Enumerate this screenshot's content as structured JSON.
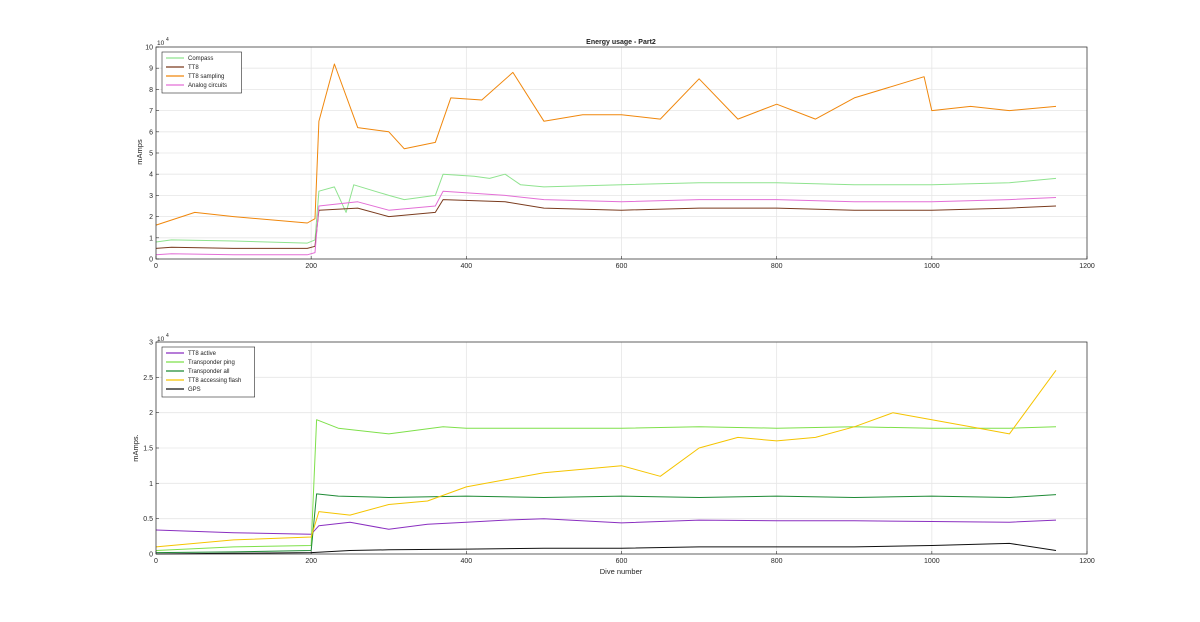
{
  "chart_data": [
    {
      "type": "line",
      "title": "Energy usage - Part2",
      "xlabel": "",
      "ylabel": "mAmps",
      "exponent_base": "10",
      "exponent_power": "4",
      "xlim": [
        0,
        1200
      ],
      "ylim": [
        0,
        10
      ],
      "xticks": [
        "0",
        "200",
        "400",
        "600",
        "800",
        "1000",
        "1200"
      ],
      "yticks": [
        "0",
        "1",
        "2",
        "3",
        "4",
        "5",
        "6",
        "7",
        "8",
        "9",
        "10"
      ],
      "grid": true,
      "legend_position": "top-left",
      "series": [
        {
          "name": "Compass",
          "color": "#8fe38f",
          "points": [
            [
              0,
              0.8
            ],
            [
              20,
              0.9
            ],
            [
              100,
              0.85
            ],
            [
              195,
              0.75
            ],
            [
              205,
              0.9
            ],
            [
              210,
              3.2
            ],
            [
              230,
              3.4
            ],
            [
              245,
              2.2
            ],
            [
              255,
              3.5
            ],
            [
              300,
              3.0
            ],
            [
              320,
              2.8
            ],
            [
              360,
              3.0
            ],
            [
              370,
              4.0
            ],
            [
              410,
              3.9
            ],
            [
              430,
              3.8
            ],
            [
              450,
              4.0
            ],
            [
              470,
              3.5
            ],
            [
              500,
              3.4
            ],
            [
              600,
              3.5
            ],
            [
              700,
              3.6
            ],
            [
              800,
              3.6
            ],
            [
              900,
              3.5
            ],
            [
              1000,
              3.5
            ],
            [
              1100,
              3.6
            ],
            [
              1160,
              3.8
            ]
          ]
        },
        {
          "name": "TT8",
          "color": "#7a3b1e",
          "points": [
            [
              0,
              0.5
            ],
            [
              20,
              0.55
            ],
            [
              100,
              0.5
            ],
            [
              195,
              0.5
            ],
            [
              205,
              0.6
            ],
            [
              210,
              2.3
            ],
            [
              260,
              2.4
            ],
            [
              300,
              2.0
            ],
            [
              360,
              2.2
            ],
            [
              370,
              2.8
            ],
            [
              450,
              2.7
            ],
            [
              500,
              2.4
            ],
            [
              600,
              2.3
            ],
            [
              700,
              2.4
            ],
            [
              800,
              2.4
            ],
            [
              900,
              2.3
            ],
            [
              1000,
              2.3
            ],
            [
              1100,
              2.4
            ],
            [
              1160,
              2.5
            ]
          ]
        },
        {
          "name": "TT8 sampling",
          "color": "#f0870c",
          "points": [
            [
              0,
              1.6
            ],
            [
              50,
              2.2
            ],
            [
              100,
              2.0
            ],
            [
              195,
              1.7
            ],
            [
              205,
              1.9
            ],
            [
              210,
              6.5
            ],
            [
              230,
              9.2
            ],
            [
              260,
              6.2
            ],
            [
              300,
              6.0
            ],
            [
              320,
              5.2
            ],
            [
              360,
              5.5
            ],
            [
              380,
              7.6
            ],
            [
              420,
              7.5
            ],
            [
              460,
              8.8
            ],
            [
              500,
              6.5
            ],
            [
              550,
              6.8
            ],
            [
              600,
              6.8
            ],
            [
              650,
              6.6
            ],
            [
              700,
              8.5
            ],
            [
              750,
              6.6
            ],
            [
              800,
              7.3
            ],
            [
              850,
              6.6
            ],
            [
              900,
              7.6
            ],
            [
              990,
              8.6
            ],
            [
              1000,
              7.0
            ],
            [
              1050,
              7.2
            ],
            [
              1100,
              7.0
            ],
            [
              1160,
              7.2
            ]
          ]
        },
        {
          "name": "Analog circuits",
          "color": "#e36fd6",
          "points": [
            [
              0,
              0.2
            ],
            [
              20,
              0.25
            ],
            [
              100,
              0.2
            ],
            [
              195,
              0.2
            ],
            [
              205,
              0.3
            ],
            [
              210,
              2.5
            ],
            [
              260,
              2.7
            ],
            [
              300,
              2.3
            ],
            [
              360,
              2.5
            ],
            [
              370,
              3.2
            ],
            [
              450,
              3.0
            ],
            [
              500,
              2.8
            ],
            [
              600,
              2.7
            ],
            [
              700,
              2.8
            ],
            [
              800,
              2.8
            ],
            [
              900,
              2.7
            ],
            [
              1000,
              2.7
            ],
            [
              1100,
              2.8
            ],
            [
              1160,
              2.9
            ]
          ]
        }
      ]
    },
    {
      "type": "line",
      "title": "",
      "xlabel": "Dive number",
      "ylabel": "mAmps.",
      "exponent_base": "10",
      "exponent_power": "4",
      "xlim": [
        0,
        1200
      ],
      "ylim": [
        0,
        3
      ],
      "xticks": [
        "0",
        "200",
        "400",
        "600",
        "800",
        "1000",
        "1200"
      ],
      "yticks": [
        "0",
        "0.5",
        "1",
        "1.5",
        "2",
        "2.5",
        "3"
      ],
      "grid": true,
      "legend_position": "top-left",
      "series": [
        {
          "name": "TT8 active",
          "color": "#8a2fc0",
          "points": [
            [
              0,
              0.34
            ],
            [
              100,
              0.3
            ],
            [
              200,
              0.28
            ],
            [
              210,
              0.4
            ],
            [
              250,
              0.45
            ],
            [
              300,
              0.35
            ],
            [
              350,
              0.42
            ],
            [
              400,
              0.45
            ],
            [
              450,
              0.48
            ],
            [
              500,
              0.5
            ],
            [
              600,
              0.44
            ],
            [
              700,
              0.48
            ],
            [
              800,
              0.47
            ],
            [
              900,
              0.47
            ],
            [
              1000,
              0.46
            ],
            [
              1100,
              0.45
            ],
            [
              1160,
              0.48
            ]
          ]
        },
        {
          "name": "Transponder ping",
          "color": "#7ee04a",
          "points": [
            [
              0,
              0.05
            ],
            [
              100,
              0.1
            ],
            [
              200,
              0.12
            ],
            [
              207,
              1.9
            ],
            [
              235,
              1.78
            ],
            [
              300,
              1.7
            ],
            [
              370,
              1.8
            ],
            [
              400,
              1.78
            ],
            [
              500,
              1.78
            ],
            [
              600,
              1.78
            ],
            [
              700,
              1.8
            ],
            [
              800,
              1.78
            ],
            [
              900,
              1.8
            ],
            [
              1000,
              1.78
            ],
            [
              1100,
              1.78
            ],
            [
              1160,
              1.8
            ]
          ]
        },
        {
          "name": "Transponder all",
          "color": "#1e8a35",
          "points": [
            [
              0,
              0.02
            ],
            [
              100,
              0.03
            ],
            [
              200,
              0.05
            ],
            [
              207,
              0.85
            ],
            [
              235,
              0.82
            ],
            [
              300,
              0.8
            ],
            [
              400,
              0.82
            ],
            [
              500,
              0.8
            ],
            [
              600,
              0.82
            ],
            [
              700,
              0.8
            ],
            [
              800,
              0.82
            ],
            [
              900,
              0.8
            ],
            [
              1000,
              0.82
            ],
            [
              1100,
              0.8
            ],
            [
              1160,
              0.84
            ]
          ]
        },
        {
          "name": "TT8 accessing flash",
          "color": "#f5c400",
          "points": [
            [
              0,
              0.1
            ],
            [
              100,
              0.2
            ],
            [
              200,
              0.24
            ],
            [
              210,
              0.6
            ],
            [
              250,
              0.55
            ],
            [
              300,
              0.7
            ],
            [
              350,
              0.75
            ],
            [
              400,
              0.95
            ],
            [
              450,
              1.05
            ],
            [
              500,
              1.15
            ],
            [
              550,
              1.2
            ],
            [
              600,
              1.25
            ],
            [
              650,
              1.1
            ],
            [
              700,
              1.5
            ],
            [
              750,
              1.65
            ],
            [
              800,
              1.6
            ],
            [
              850,
              1.65
            ],
            [
              900,
              1.8
            ],
            [
              950,
              2.0
            ],
            [
              1000,
              1.9
            ],
            [
              1050,
              1.8
            ],
            [
              1100,
              1.7
            ],
            [
              1160,
              2.6
            ]
          ]
        },
        {
          "name": "GPS",
          "color": "#111111",
          "points": [
            [
              0,
              0.0
            ],
            [
              100,
              0.01
            ],
            [
              200,
              0.02
            ],
            [
              250,
              0.05
            ],
            [
              300,
              0.06
            ],
            [
              400,
              0.07
            ],
            [
              500,
              0.08
            ],
            [
              600,
              0.08
            ],
            [
              700,
              0.1
            ],
            [
              800,
              0.1
            ],
            [
              900,
              0.1
            ],
            [
              1000,
              0.12
            ],
            [
              1100,
              0.15
            ],
            [
              1160,
              0.05
            ]
          ]
        }
      ]
    }
  ]
}
